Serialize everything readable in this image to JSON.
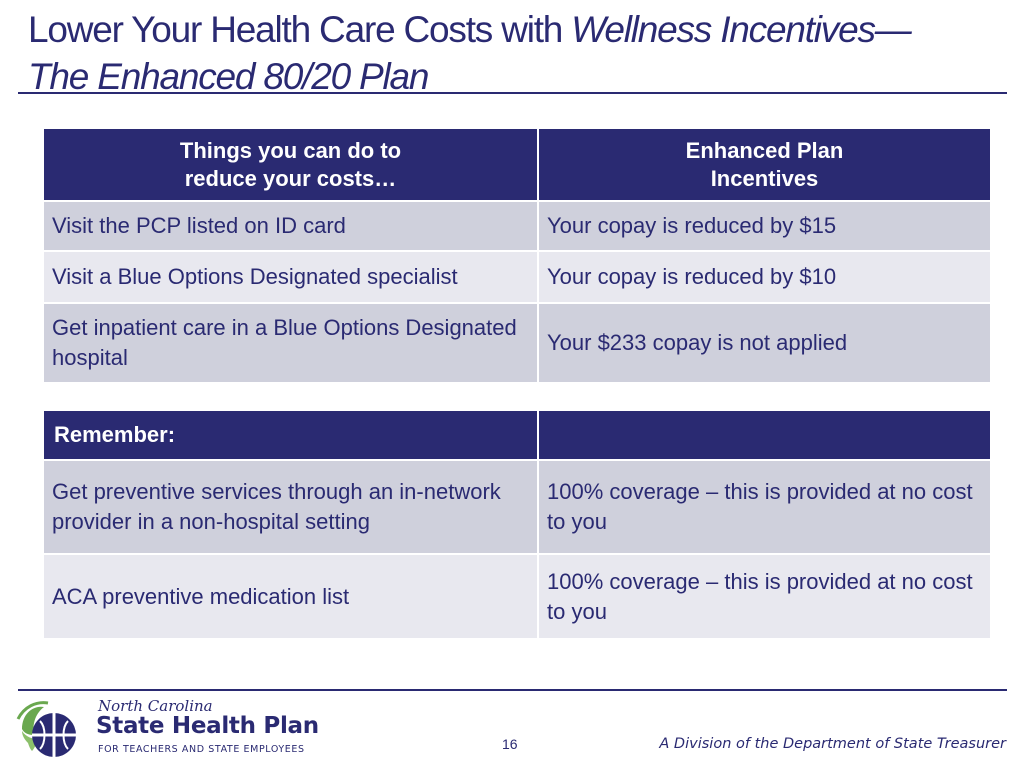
{
  "title": {
    "line1_plain": "Lower Your Health Care Costs with ",
    "line1_italic": "Wellness Incentives—",
    "line2_italic": "The Enhanced 80/20 Plan"
  },
  "table1": {
    "headers": [
      {
        "line1": "Things you can do to",
        "line2": "reduce your costs…"
      },
      {
        "line1": "Enhanced Plan",
        "line2": "Incentives"
      }
    ],
    "rows": [
      {
        "action": "Visit the PCP listed on ID card",
        "incentive": "Your copay is reduced by $15"
      },
      {
        "action": "Visit a Blue Options Designated specialist",
        "incentive": "Your copay is reduced by $10"
      },
      {
        "action": "Get inpatient care in a Blue Options Designated hospital",
        "incentive": "Your $233 copay is not applied"
      }
    ]
  },
  "table2": {
    "header": "Remember:",
    "header_right": "",
    "rows": [
      {
        "item": "Get preventive services through an in-network provider in a non-hospital setting",
        "coverage": "100% coverage – this is provided at no cost to you"
      },
      {
        "item": "ACA preventive medication list",
        "coverage": "100% coverage – this is provided at no cost to you"
      }
    ]
  },
  "footer": {
    "logo_script": "North Carolina",
    "logo_name": "State Health Plan",
    "logo_sub": "FOR TEACHERS AND STATE EMPLOYEES",
    "page_number": "16",
    "division": "A Division of the Department of State Treasurer"
  },
  "colors": {
    "navy": "#2a2a72",
    "row_dark": "#cfd0dc",
    "row_light": "#e8e8ef",
    "logo_green": "#6aa84f"
  }
}
